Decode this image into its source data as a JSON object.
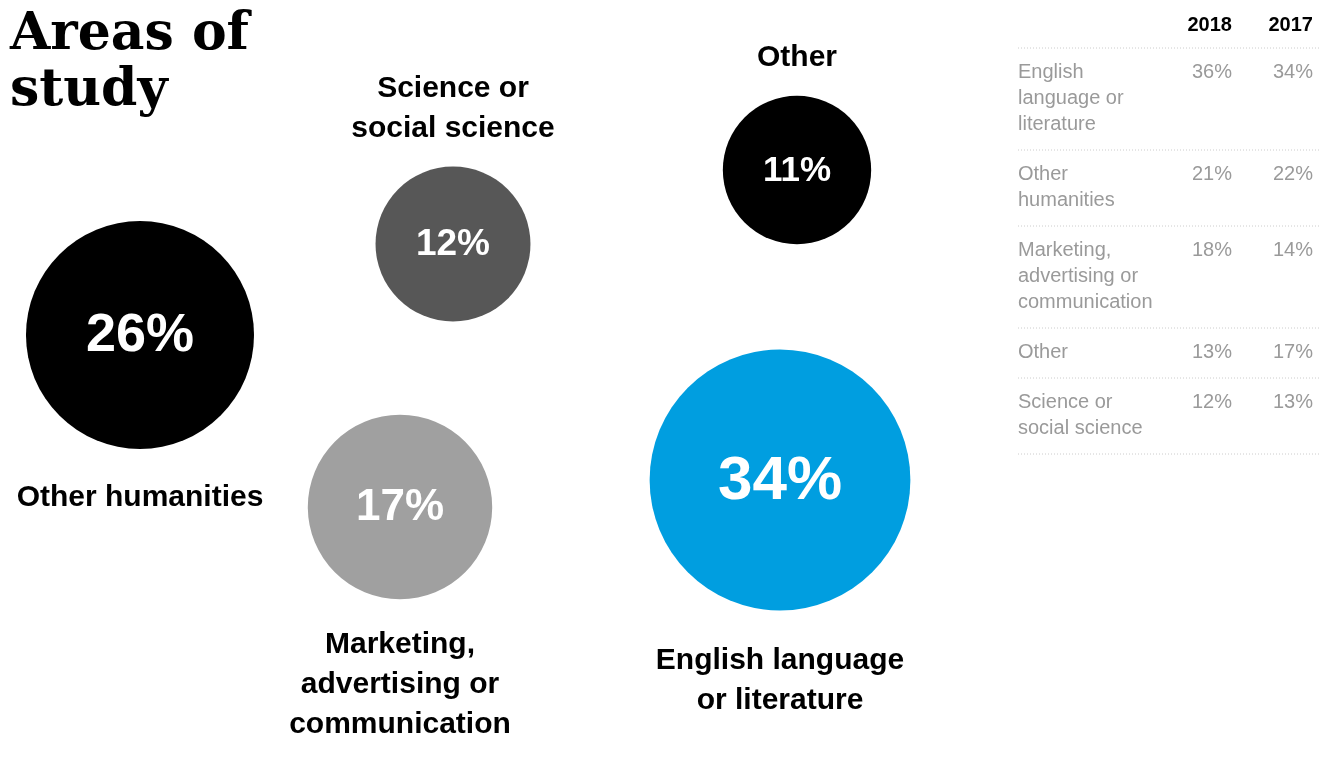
{
  "chart_data": [
    {
      "type": "other",
      "title": "Areas of study",
      "categories": [
        "Other humanities",
        "Science or social science",
        "Marketing, advertising or communication",
        "Other",
        "English language or literature"
      ],
      "values": [
        26,
        12,
        17,
        11,
        34
      ],
      "value_labels": [
        "26%",
        "12%",
        "17%",
        "11%",
        "34%"
      ],
      "colors": [
        "#000000",
        "#575757",
        "#a0a0a0",
        "#000000",
        "#009ee0"
      ]
    },
    {
      "type": "other",
      "categories": [
        "English language or literature",
        "Other humanities",
        "Marketing, advertising or communication",
        "Other",
        "Science or social science"
      ],
      "series": [
        {
          "name": "2018",
          "values": [
            36,
            21,
            18,
            13,
            12
          ],
          "value_labels": [
            "36%",
            "21%",
            "18%",
            "13%",
            "12%"
          ]
        },
        {
          "name": "2017",
          "values": [
            34,
            22,
            14,
            17,
            13
          ],
          "value_labels": [
            "34%",
            "22%",
            "14%",
            "17%",
            "13%"
          ]
        }
      ]
    }
  ]
}
